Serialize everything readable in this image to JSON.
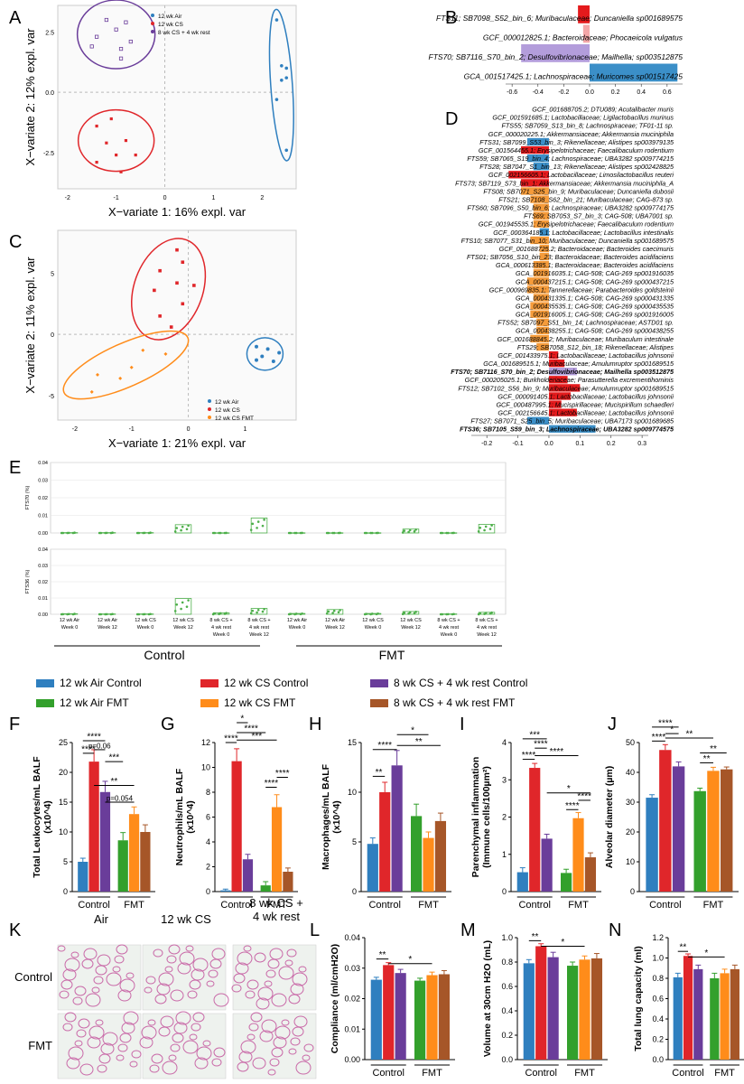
{
  "figure_title": "",
  "colors": {
    "air_control": "#2f7fbf",
    "cs_control": "#e0262a",
    "rest_control": "#6a3d9a",
    "air_fmt": "#33a02c",
    "cs_fmt": "#ff8c1a",
    "rest_fmt": "#a65628",
    "pls_neg": "#3b8fc8",
    "pls_pos": "#e41a1c",
    "pls_purple": "#b39ddb",
    "pls_orange": "#f59b3a",
    "e_bar": "#4daf4a"
  },
  "panel_labels": {
    "A": "A",
    "B": "B",
    "C": "C",
    "D": "D",
    "E": "E",
    "F": "F",
    "G": "G",
    "H": "H",
    "I": "I",
    "J": "J",
    "K": "K",
    "L": "L",
    "M": "M",
    "N": "N"
  },
  "panelA": {
    "xlabel": "X−variate 1: 16% expl. var",
    "ylabel": "X−variate 2: 12% expl. var",
    "legend": [
      "12 wk Air",
      "12 wk CS",
      "8 wk CS + 4 wk rest"
    ],
    "xticks": [
      "-2",
      "-1",
      "0",
      "1",
      "2"
    ],
    "yticks": [
      "2.5",
      "0.0",
      "-2.5"
    ]
  },
  "panelC": {
    "xlabel": "X−variate 1: 21% expl. var",
    "ylabel": "X−variate 2: 11% expl. var",
    "legend": [
      "12 wk Air",
      "12 wk CS",
      "12 wk CS FMT"
    ],
    "xticks": [
      "-2",
      "-1",
      "0",
      "1"
    ],
    "yticks": [
      "5",
      "0",
      "-5"
    ]
  },
  "chart_data": [
    {
      "panel": "B",
      "type": "bar",
      "orientation": "horizontal",
      "categories": [
        "FTS11; SB7098_S52_bin_6; Muribaculaceae; Duncaniella sp001689575",
        "GCF_000012825.1; Bacteroidaceae; Phocaeicola vulgatus",
        "FTS70; SB7116_S70_bin_2; Desulfovibrionaceae; Mailhella; sp003512875",
        "GCA_001517425.1; Lachnospiraceae; Muricomes sp001517425"
      ],
      "values": [
        -0.09,
        -0.05,
        -0.53,
        0.68
      ],
      "xticks": [
        "-0.6",
        "-0.4",
        "-0.2",
        "0.0",
        "0.2",
        "0.4",
        "0.6"
      ],
      "xlim": [
        -0.65,
        0.72
      ]
    },
    {
      "panel": "D",
      "type": "bar",
      "orientation": "horizontal",
      "categories": [
        "GCF_001688705.2; DTU089; Acutalibacter muris",
        "GCF_001591685.1; Lactobacillaceae; Ligilactobacillus murinus",
        "FTS55; SB7059_S13_bin_8; Lachnospiraceae; TF01-11 sp.",
        "GCF_000020225.1; Akkermansiaceae; Akkermansia muciniphila",
        "FTS31; SB7099_S53_bin_3; Rikenellaceae; Alistipes sp003979135",
        "GCF_001564455.1; Erysipelotrichaceae; Faecalibaculum rodentium",
        "FTS59; SB7065_S19_bin_4; Lachnospiraceae; UBA3282 sp009774215",
        "FTS28; SB7047_S1_bin_13; Rikenellaceae; Alistipes sp002428825",
        "GCF_002156605.1; Lactobacillaceae; Limosilactobacillus reuteri",
        "FTS73; SB7119_S73_bin_1; Akkermansiaceae; Akkermansia muciniphila_A",
        "FTS08; SB7071_S25_bin_9; Muribaculaceae; Duncaniella dubosii",
        "FTS21; SB7108_S62_bin_21; Muribaculaceae; CAG-873 sp.",
        "FTS60; SB7096_S50_bin_6; Lachnospiraceae; UBA3282 sp009774175",
        "FTS69; SB7053_S7_bin_3; CAG-508; UBA7001 sp.",
        "GCF_001945535.1; Erysipelotrichaceae; Faecalibaculum rodentium",
        "GCF_000364185.1; Lactobacillaceae; Lactobacillus intestinalis",
        "FTS10; SB7077_S31_bin_10; Muribaculaceae; Duncaniella sp001689575",
        "GCF_001688725.2; Bacteroidaceae; Bacteroides caecimuris",
        "FTS01; SB7056_S10_bin_23; Bacteroidaceae; Bacteroides acidifaciens",
        "GCA_000613385.1; Bacteroidaceae; Bacteroides acidifaciens",
        "GCA_001916035.1; CAG-508; CAG-269 sp001916035",
        "GCA_000437215.1; CAG-508; CAG-269 sp000437215",
        "GCF_000969835.1; Tannerellaceae; Parabacteroides goldsteinii",
        "GCA_000431335.1; CAG-508; CAG-269 sp000431335",
        "GCA_000435535.1; CAG-508; CAG-269 sp000435535",
        "GCA_001916005.1; CAG-508; CAG-269 sp001916005",
        "FTS52; SB7097_S51_bin_14; Lachnospiraceae; ASTD01 sp.",
        "GCA_000438255.1; CAG-508; CAG-269 sp000438255",
        "GCF_001688845.2; Muribaculaceae; Muribaculum intestinale",
        "FTS29; SB7058_S12_bin_18; Rikenellaceae; Alistipes",
        "GCF_001433975.1; Lactobacillaceae; Lactobacillus johnsonii",
        "GCA_001689515.1; Muribaculaceae; Amulumruptor sp001689515",
        "FTS70; SB7116_S70_bin_2; Desulfovibrionaceae; Mailhella sp003512875",
        "GCF_000205025.1; Burkholderiaceae; Parasutterella excrementihominis",
        "FTS12; SB7102_S56_bin_9; Muribaculaceae; Amulumruptor sp001689515",
        "GCF_000091405.1; Lactobacillaceae; Lactobacillus johnsonii",
        "GCF_000487995.1; Mucispirillaceae; Mucispirillum schaedleri",
        "GCF_002156645.1; Lactobacillaceae; Lactobacillus johnsonii",
        "FTS27; SB7071_S25_bin_5; Muribaculaceae; UBA7173 sp001689685",
        "FTS36; SB7105_S59_bin_3; Lachnospiraceae; UBA3282 sp009774575"
      ],
      "values": [
        -0.13,
        -0.11,
        -0.13,
        -0.1,
        -0.07,
        -0.09,
        -0.07,
        -0.05,
        -0.13,
        -0.09,
        -0.09,
        -0.06,
        -0.05,
        -0.05,
        -0.05,
        -0.03,
        -0.06,
        -0.03,
        -0.03,
        -0.05,
        -0.05,
        -0.07,
        -0.07,
        -0.05,
        -0.06,
        -0.06,
        -0.04,
        -0.04,
        -0.06,
        -0.04,
        0.03,
        0.05,
        0.09,
        0.06,
        0.1,
        0.07,
        0.04,
        0.09,
        -0.07,
        0.15
      ],
      "bold": [
        false,
        false,
        false,
        false,
        false,
        false,
        false,
        false,
        false,
        false,
        false,
        false,
        false,
        false,
        false,
        false,
        false,
        false,
        false,
        false,
        false,
        false,
        false,
        false,
        false,
        false,
        false,
        false,
        false,
        false,
        false,
        false,
        true,
        false,
        false,
        false,
        false,
        false,
        false,
        true
      ],
      "bar_colors": [
        "none",
        "none",
        "none",
        "none",
        "neg",
        "pos",
        "neg",
        "neg",
        "pos",
        "pos",
        "orange",
        "orange",
        "orange",
        "orange",
        "orange",
        "neg",
        "orange",
        "orange",
        "orange",
        "orange",
        "orange",
        "orange",
        "orange",
        "orange",
        "orange",
        "orange",
        "orange",
        "orange",
        "orange",
        "orange",
        "pos",
        "pos",
        "purple",
        "pos",
        "pos",
        "pos",
        "pos",
        "pos",
        "neg",
        "neg"
      ],
      "xticks": [
        "-0.2",
        "-0.1",
        "0.0",
        "0.1",
        "0.2",
        "0.3"
      ],
      "xlim": [
        -0.25,
        0.32
      ]
    },
    {
      "panel": "E",
      "type": "bar",
      "categories": [
        "12 wk Air\nWeek 0",
        "12 wk Air\nWeek 12",
        "12 wk CS\nWeek 0",
        "12 wk CS\nWeek 12",
        "8 wk CS +\n4 wk rest\nWeek 0",
        "8 wk CS +\n4 wk rest\nWeek 12",
        "12 wk Air\nWeek 0",
        "12 wk Air\nWeek 12",
        "12 wk CS\nWeek 0",
        "12 wk CS\nWeek 12",
        "8 wk CS +\n4 wk rest\nWeek 0",
        "8 wk CS +\n4 wk rest\nWeek 12"
      ],
      "group_labels": [
        "Control",
        "FMT"
      ],
      "series": [
        {
          "name": "FTS70 (%)",
          "values": [
            0.0002,
            0.0002,
            0.0002,
            0.0047,
            0.0001,
            0.0085,
            0.0001,
            0.0001,
            0.0001,
            0.0022,
            0.0001,
            0.0049
          ],
          "ylim": [
            0,
            0.04
          ],
          "yticks": [
            "0.04",
            "0.03",
            "0.02",
            "0.01",
            "0.00"
          ]
        },
        {
          "name": "FTS36 (%)",
          "values": [
            0.0003,
            0.0002,
            0.0002,
            0.0097,
            0.0009,
            0.0036,
            0.0005,
            0.0029,
            0.0005,
            0.0017,
            0.0002,
            0.0012
          ],
          "ylim": [
            0,
            0.04
          ],
          "yticks": [
            "0.04",
            "0.03",
            "0.02",
            "0.01",
            "0.00"
          ]
        }
      ]
    },
    {
      "panel": "F",
      "type": "bar",
      "ylabel": "Total Leukocytes/mL BALF (x10^4)",
      "categories": [
        "12 wk Air Control",
        "12 wk CS Control",
        "8 wk CS + 4 wk rest Control",
        "12 wk Air FMT",
        "12 wk CS FMT",
        "8 wk CS + 4 wk rest FMT"
      ],
      "values": [
        5.0,
        21.8,
        16.7,
        8.6,
        13.0,
        10.0
      ],
      "errors": [
        0.6,
        2.0,
        1.8,
        1.3,
        1.2,
        1.2
      ],
      "ylim": [
        0,
        25
      ],
      "yticks": [
        "0",
        "5",
        "10",
        "15",
        "20",
        "25"
      ],
      "group_labels": [
        "Control",
        "FMT"
      ],
      "annotations": [
        {
          "from": 0,
          "to": 1,
          "text": "****",
          "y": 23.2
        },
        {
          "from": 0,
          "to": 2,
          "text": "****",
          "y": 25.3
        },
        {
          "from": 1,
          "to": 2,
          "text": "p=0.06",
          "y": 23.8
        },
        {
          "from": 2,
          "to": 3,
          "text": "***",
          "y": 21.8
        },
        {
          "from": 2,
          "to": 4,
          "text": "p=0.054",
          "y": 15.0
        },
        {
          "from": 1,
          "to": 4,
          "text": "**",
          "y": 17.8
        }
      ]
    },
    {
      "panel": "G",
      "type": "bar",
      "ylabel": "Neutrophils/mL BALF (x10^4)",
      "categories": [
        "12 wk Air Control",
        "12 wk CS Control",
        "8 wk CS + 4 wk rest Control",
        "12 wk Air FMT",
        "12 wk CS FMT",
        "8 wk CS + 4 wk rest FMT"
      ],
      "values": [
        0.1,
        10.5,
        2.6,
        0.5,
        6.8,
        1.6
      ],
      "errors": [
        0.1,
        1.0,
        0.4,
        0.3,
        1.0,
        0.3
      ],
      "ylim": [
        0,
        12
      ],
      "yticks": [
        "0",
        "2",
        "4",
        "6",
        "8",
        "10",
        "12"
      ],
      "group_labels": [
        "Control",
        "FMT"
      ],
      "annotations": [
        {
          "from": 0,
          "to": 1,
          "text": "****",
          "y": 12.0
        },
        {
          "from": 1,
          "to": 2,
          "text": "*",
          "y": 13.6
        },
        {
          "from": 1,
          "to": 3,
          "text": "****",
          "y": 12.8
        },
        {
          "from": 1,
          "to": 4,
          "text": "***",
          "y": 12.2
        },
        {
          "from": 3,
          "to": 4,
          "text": "****",
          "y": 8.4
        },
        {
          "from": 4,
          "to": 5,
          "text": "****",
          "y": 9.2
        }
      ]
    },
    {
      "panel": "H",
      "type": "bar",
      "ylabel": "Macrophages/mL BALF (x10^4)",
      "categories": [
        "12 wk Air Control",
        "12 wk CS Control",
        "8 wk CS + 4 wk rest Control",
        "12 wk Air FMT",
        "12 wk CS FMT",
        "8 wk CS + 4 wk rest FMT"
      ],
      "values": [
        4.8,
        10.0,
        12.7,
        7.6,
        5.4,
        7.1
      ],
      "errors": [
        0.6,
        1.0,
        1.5,
        1.2,
        0.6,
        0.8
      ],
      "ylim": [
        0,
        15
      ],
      "yticks": [
        "0",
        "5",
        "10",
        "15"
      ],
      "group_labels": [
        "Control",
        "FMT"
      ],
      "annotations": [
        {
          "from": 0,
          "to": 1,
          "text": "**",
          "y": 11.6
        },
        {
          "from": 0,
          "to": 2,
          "text": "****",
          "y": 14.3
        },
        {
          "from": 2,
          "to": 4,
          "text": "*",
          "y": 15.8
        },
        {
          "from": 2,
          "to": 5,
          "text": "**",
          "y": 14.7
        }
      ]
    },
    {
      "panel": "I",
      "type": "bar",
      "ylabel": "Parenchymal inflammation (Immune cells/100µm²)",
      "categories": [
        "12 wk Air Control",
        "12 wk CS Control",
        "8 wk CS + 4 wk rest Control",
        "12 wk Air FMT",
        "12 wk CS FMT",
        "8 wk CS + 4 wk rest FMT"
      ],
      "values": [
        0.52,
        3.32,
        1.42,
        0.5,
        1.97,
        0.92
      ],
      "errors": [
        0.12,
        0.12,
        0.12,
        0.1,
        0.15,
        0.12
      ],
      "ylim": [
        0,
        4
      ],
      "yticks": [
        "0",
        "1",
        "2",
        "3",
        "4"
      ],
      "group_labels": [
        "Control",
        "FMT"
      ],
      "annotations": [
        {
          "from": 0,
          "to": 1,
          "text": "****",
          "y": 3.55
        },
        {
          "from": 0,
          "to": 2,
          "text": "***",
          "y": 4.1
        },
        {
          "from": 1,
          "to": 2,
          "text": "****",
          "y": 3.85
        },
        {
          "from": 1,
          "to": 4,
          "text": "****",
          "y": 3.65
        },
        {
          "from": 3,
          "to": 4,
          "text": "****",
          "y": 2.2
        },
        {
          "from": 4,
          "to": 5,
          "text": "****",
          "y": 2.45
        },
        {
          "from": 2,
          "to": 5,
          "text": "*",
          "y": 2.65
        }
      ]
    },
    {
      "panel": "J",
      "type": "bar",
      "ylabel": "Alveolar diameter (µm)",
      "categories": [
        "12 wk Air Control",
        "12 wk CS Control",
        "8 wk CS + 4 wk rest Control",
        "12 wk Air FMT",
        "12 wk CS FMT",
        "8 wk CS + 4 wk rest FMT"
      ],
      "values": [
        31.5,
        47.5,
        42.0,
        33.7,
        40.5,
        41.0
      ],
      "errors": [
        1.0,
        1.8,
        1.5,
        1.0,
        1.2,
        0.8
      ],
      "ylim": [
        0,
        50
      ],
      "yticks": [
        "0",
        "10",
        "20",
        "30",
        "40",
        "50"
      ],
      "group_labels": [
        "Control",
        "FMT"
      ],
      "annotations": [
        {
          "from": 0,
          "to": 1,
          "text": "****",
          "y": 50.5
        },
        {
          "from": 0,
          "to": 2,
          "text": "****",
          "y": 55.2
        },
        {
          "from": 1,
          "to": 2,
          "text": "*",
          "y": 53.0
        },
        {
          "from": 1,
          "to": 4,
          "text": "**",
          "y": 51.5
        },
        {
          "from": 3,
          "to": 4,
          "text": "**",
          "y": 43.2
        },
        {
          "from": 3,
          "to": 5,
          "text": "**",
          "y": 46.5
        }
      ]
    },
    {
      "panel": "L",
      "type": "bar",
      "ylabel": "Compliance (ml/cmH2O)",
      "categories": [
        "12 wk Air Control",
        "12 wk CS Control",
        "8 wk CS + 4 wk rest Control",
        "12 wk Air FMT",
        "12 wk CS FMT",
        "8 wk CS + 4 wk rest FMT"
      ],
      "values": [
        0.0262,
        0.031,
        0.0284,
        0.0259,
        0.0277,
        0.028
      ],
      "errors": [
        0.0008,
        0.0008,
        0.0012,
        0.0008,
        0.001,
        0.0012
      ],
      "ylim": [
        0,
        0.04
      ],
      "yticks": [
        "0.00",
        "0.01",
        "0.02",
        "0.03",
        "0.04"
      ],
      "group_labels": [
        "Control",
        "FMT"
      ],
      "annotations": [
        {
          "from": 0,
          "to": 1,
          "text": "**",
          "y": 0.033
        },
        {
          "from": 1,
          "to": 4,
          "text": "*",
          "y": 0.0315
        }
      ]
    },
    {
      "panel": "M",
      "type": "bar",
      "ylabel": "Volume at 30cm H2O (mL)",
      "categories": [
        "12 wk Air Control",
        "12 wk CS Control",
        "8 wk CS + 4 wk rest Control",
        "12 wk Air FMT",
        "12 wk CS FMT",
        "8 wk CS + 4 wk rest FMT"
      ],
      "values": [
        0.79,
        0.93,
        0.84,
        0.77,
        0.82,
        0.83
      ],
      "errors": [
        0.03,
        0.02,
        0.04,
        0.03,
        0.03,
        0.04
      ],
      "ylim": [
        0,
        1.0
      ],
      "yticks": [
        "0.0",
        "0.2",
        "0.4",
        "0.6",
        "0.8",
        "1.0"
      ],
      "group_labels": [
        "Control",
        "FMT"
      ],
      "annotations": [
        {
          "from": 0,
          "to": 1,
          "text": "**",
          "y": 0.975
        },
        {
          "from": 1,
          "to": 4,
          "text": "*",
          "y": 0.93
        }
      ]
    },
    {
      "panel": "N",
      "type": "bar",
      "ylabel": "Total lung capacity (ml)",
      "categories": [
        "12 wk Air Control",
        "12 wk CS Control",
        "8 wk CS + 4 wk rest Control",
        "12 wk Air FMT",
        "12 wk CS FMT",
        "8 wk CS + 4 wk rest FMT"
      ],
      "values": [
        0.81,
        1.02,
        0.89,
        0.8,
        0.85,
        0.89
      ],
      "errors": [
        0.04,
        0.02,
        0.04,
        0.05,
        0.04,
        0.04
      ],
      "ylim": [
        0,
        1.2
      ],
      "yticks": [
        "0.0",
        "0.2",
        "0.4",
        "0.6",
        "0.8",
        "1.0",
        "1.2"
      ],
      "group_labels": [
        "Control",
        "FMT"
      ],
      "annotations": [
        {
          "from": 0,
          "to": 1,
          "text": "**",
          "y": 1.065
        },
        {
          "from": 1,
          "to": 4,
          "text": "*",
          "y": 1.01
        }
      ]
    }
  ],
  "legend_main": [
    {
      "name": "12 wk Air Control",
      "color": "#2f7fbf"
    },
    {
      "name": "12 wk CS Control",
      "color": "#e0262a"
    },
    {
      "name": "8 wk CS + 4 wk rest Control",
      "color": "#6a3d9a"
    },
    {
      "name": "12 wk Air FMT",
      "color": "#33a02c"
    },
    {
      "name": "12 wk CS FMT",
      "color": "#ff8c1a"
    },
    {
      "name": "8 wk CS + 4 wk rest FMT",
      "color": "#a65628"
    }
  ],
  "panelK": {
    "columns": [
      "Air",
      "12 wk CS",
      "8 wk CS +\n4 wk rest"
    ],
    "rows": [
      "Control",
      "FMT"
    ]
  }
}
